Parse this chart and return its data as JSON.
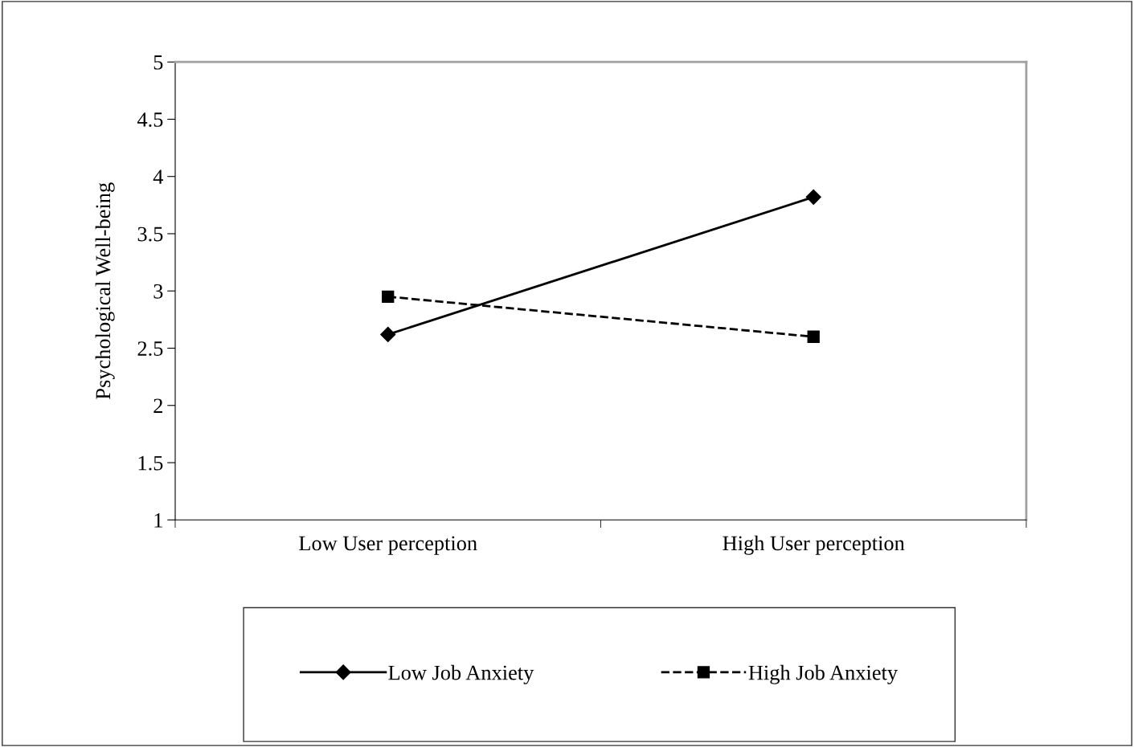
{
  "chart_data": {
    "type": "line",
    "ylabel": "Psychological Well-being",
    "categories": [
      "Low User perception",
      "High User perception"
    ],
    "series": [
      {
        "name": "Low Job Anxiety",
        "color": "#000000",
        "values": [
          2.62,
          3.82
        ],
        "marker": "diamond",
        "line_style": "solid"
      },
      {
        "name": "High Job Anxiety",
        "color": "#000000",
        "values": [
          2.95,
          2.6
        ],
        "marker": "square",
        "line_style": "dashed"
      }
    ],
    "ylim": [
      1,
      5
    ],
    "yticks": [
      1,
      1.5,
      2,
      2.5,
      3,
      3.5,
      4,
      4.5,
      5
    ],
    "grid": false,
    "legend": "bottom"
  }
}
